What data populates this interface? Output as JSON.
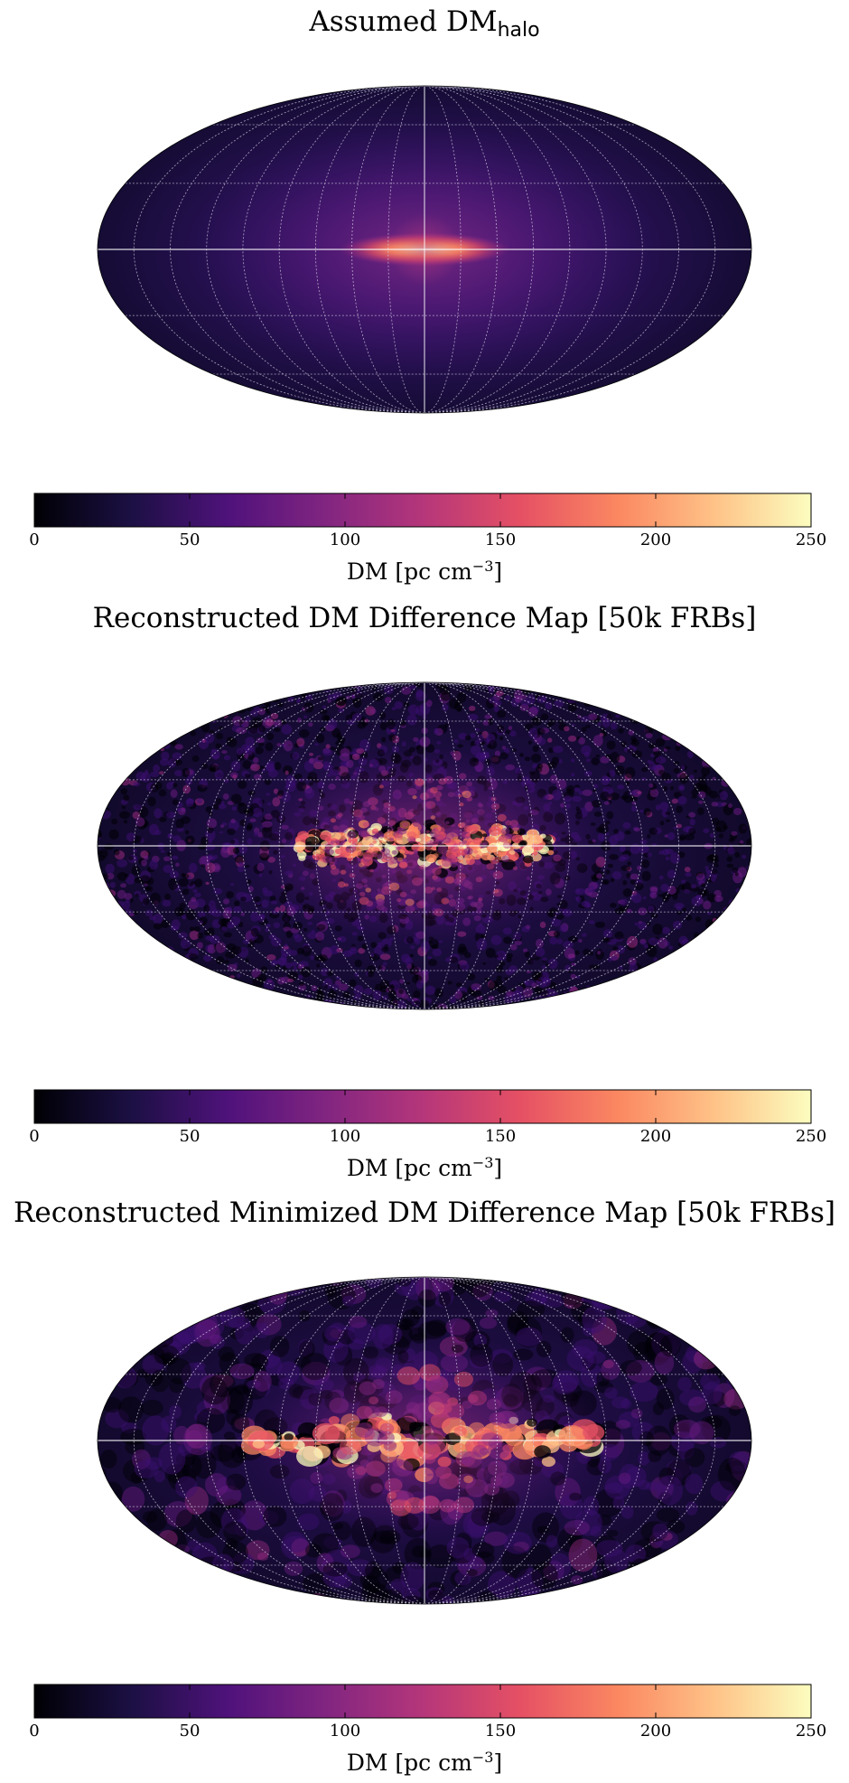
{
  "colors": {
    "colormap": [
      "#000004",
      "#1c1044",
      "#4f127b",
      "#812581",
      "#b5367a",
      "#e55064",
      "#fb8761",
      "#fec287",
      "#fcfdbf"
    ],
    "graticule": "#d9d4e6",
    "axis_line": "#ffffff"
  },
  "chart_data": [
    {
      "type": "heatmap",
      "projection": "mollweide",
      "title_main": "Assumed DM",
      "title_sub": "halo",
      "colorbar": {
        "range": [
          0,
          250
        ],
        "ticks": [
          "0",
          "50",
          "100",
          "150",
          "200",
          "250"
        ],
        "label": "DM [pc cm",
        "label_exp": "−3",
        "label_end": "]"
      },
      "graticule": {
        "meridian_step_deg": 20,
        "parallel_step_deg": 30
      },
      "pattern": "smooth"
    },
    {
      "type": "heatmap",
      "projection": "mollweide",
      "title_main": "Reconstructed DM Difference Map [50k FRBs]",
      "title_sub": "",
      "colorbar": {
        "range": [
          0,
          250
        ],
        "ticks": [
          "0",
          "50",
          "100",
          "150",
          "200",
          "250"
        ],
        "label": "DM [pc cm",
        "label_exp": "−3",
        "label_end": "]"
      },
      "graticule": {
        "meridian_step_deg": 20,
        "parallel_step_deg": 30
      },
      "pattern": "noisy-fine"
    },
    {
      "type": "heatmap",
      "projection": "mollweide",
      "title_main": "Reconstructed Minimized DM Difference Map [50k FRBs]",
      "title_sub": "",
      "colorbar": {
        "range": [
          0,
          250
        ],
        "ticks": [
          "0",
          "50",
          "100",
          "150",
          "200",
          "250"
        ],
        "label": "DM [pc cm",
        "label_exp": "−3",
        "label_end": "]"
      },
      "graticule": {
        "meridian_step_deg": 20,
        "parallel_step_deg": 30
      },
      "pattern": "noisy-coarse"
    }
  ]
}
